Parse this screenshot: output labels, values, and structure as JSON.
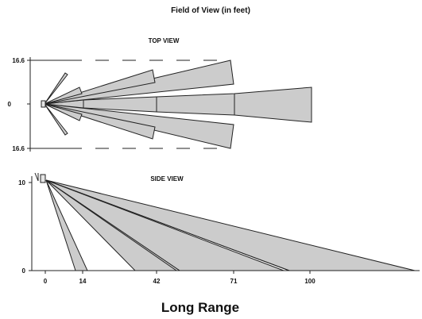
{
  "title": "Field of View (in feet)",
  "top_view": {
    "label": "TOP VIEW",
    "y_ticks": [
      "16.6",
      "0",
      "16.6"
    ]
  },
  "side_view": {
    "label": "SIDE VIEW",
    "y_ticks": [
      "10",
      "0"
    ],
    "x_ticks": [
      "0",
      "14",
      "42",
      "71",
      "100"
    ]
  },
  "caption": "Long Range",
  "colors": {
    "zone_fill": "#cccccc",
    "outline": "#222222"
  }
}
